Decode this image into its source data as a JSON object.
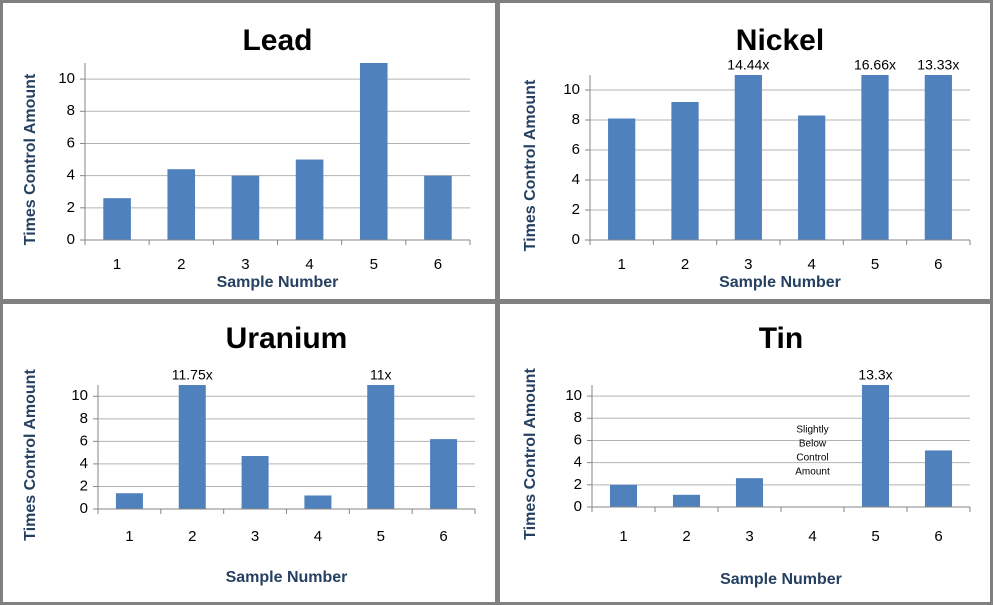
{
  "chart_data": [
    {
      "type": "bar",
      "title": "Lead",
      "x_label": "Sample Number",
      "y_label": "Times Control Amount",
      "categories": [
        "1",
        "2",
        "3",
        "4",
        "5",
        "6"
      ],
      "values": [
        2.6,
        4.4,
        4.0,
        5.0,
        11,
        4.0
      ],
      "color": "#4f81bd",
      "ylim": [
        0,
        11
      ],
      "yticks": [
        0,
        2,
        4,
        6,
        8,
        10
      ],
      "grid": true
    },
    {
      "type": "bar",
      "title": "Nickel",
      "x_label": "Sample Number",
      "y_label": "Times Control Amount",
      "categories": [
        "1",
        "2",
        "3",
        "4",
        "5",
        "6"
      ],
      "values": [
        8.1,
        9.2,
        14.44,
        8.3,
        16.66,
        13.33
      ],
      "value_labels": [
        null,
        null,
        "14.44x",
        null,
        "16.66x",
        "13.33x"
      ],
      "color": "#4f81bd",
      "ylim": [
        0,
        11
      ],
      "yticks": [
        0,
        2,
        4,
        6,
        8,
        10
      ],
      "grid": true
    },
    {
      "type": "bar",
      "title": "Uranium",
      "x_label": "Sample Number",
      "y_label": "Times Control Amount",
      "categories": [
        "1",
        "2",
        "3",
        "4",
        "5",
        "6"
      ],
      "values": [
        1.4,
        11.75,
        4.7,
        1.2,
        11,
        6.2
      ],
      "value_labels": [
        null,
        "11.75x",
        null,
        null,
        "11x",
        null
      ],
      "color": "#4f81bd",
      "ylim": [
        0,
        11
      ],
      "yticks": [
        0,
        2,
        4,
        6,
        8,
        10
      ],
      "grid": true
    },
    {
      "type": "bar",
      "title": "Tin",
      "x_label": "Sample Number",
      "y_label": "Times Control Amount",
      "categories": [
        "1",
        "2",
        "3",
        "4",
        "5",
        "6"
      ],
      "values": [
        2.0,
        1.1,
        2.6,
        null,
        13.3,
        5.1
      ],
      "value_labels": [
        null,
        null,
        null,
        null,
        "13.3x",
        null
      ],
      "annotation": [
        "Slightly",
        "Below",
        "Control",
        "Amount"
      ],
      "color": "#4f81bd",
      "ylim": [
        0,
        11
      ],
      "yticks": [
        0,
        2,
        4,
        6,
        8,
        10
      ],
      "grid": true
    }
  ]
}
